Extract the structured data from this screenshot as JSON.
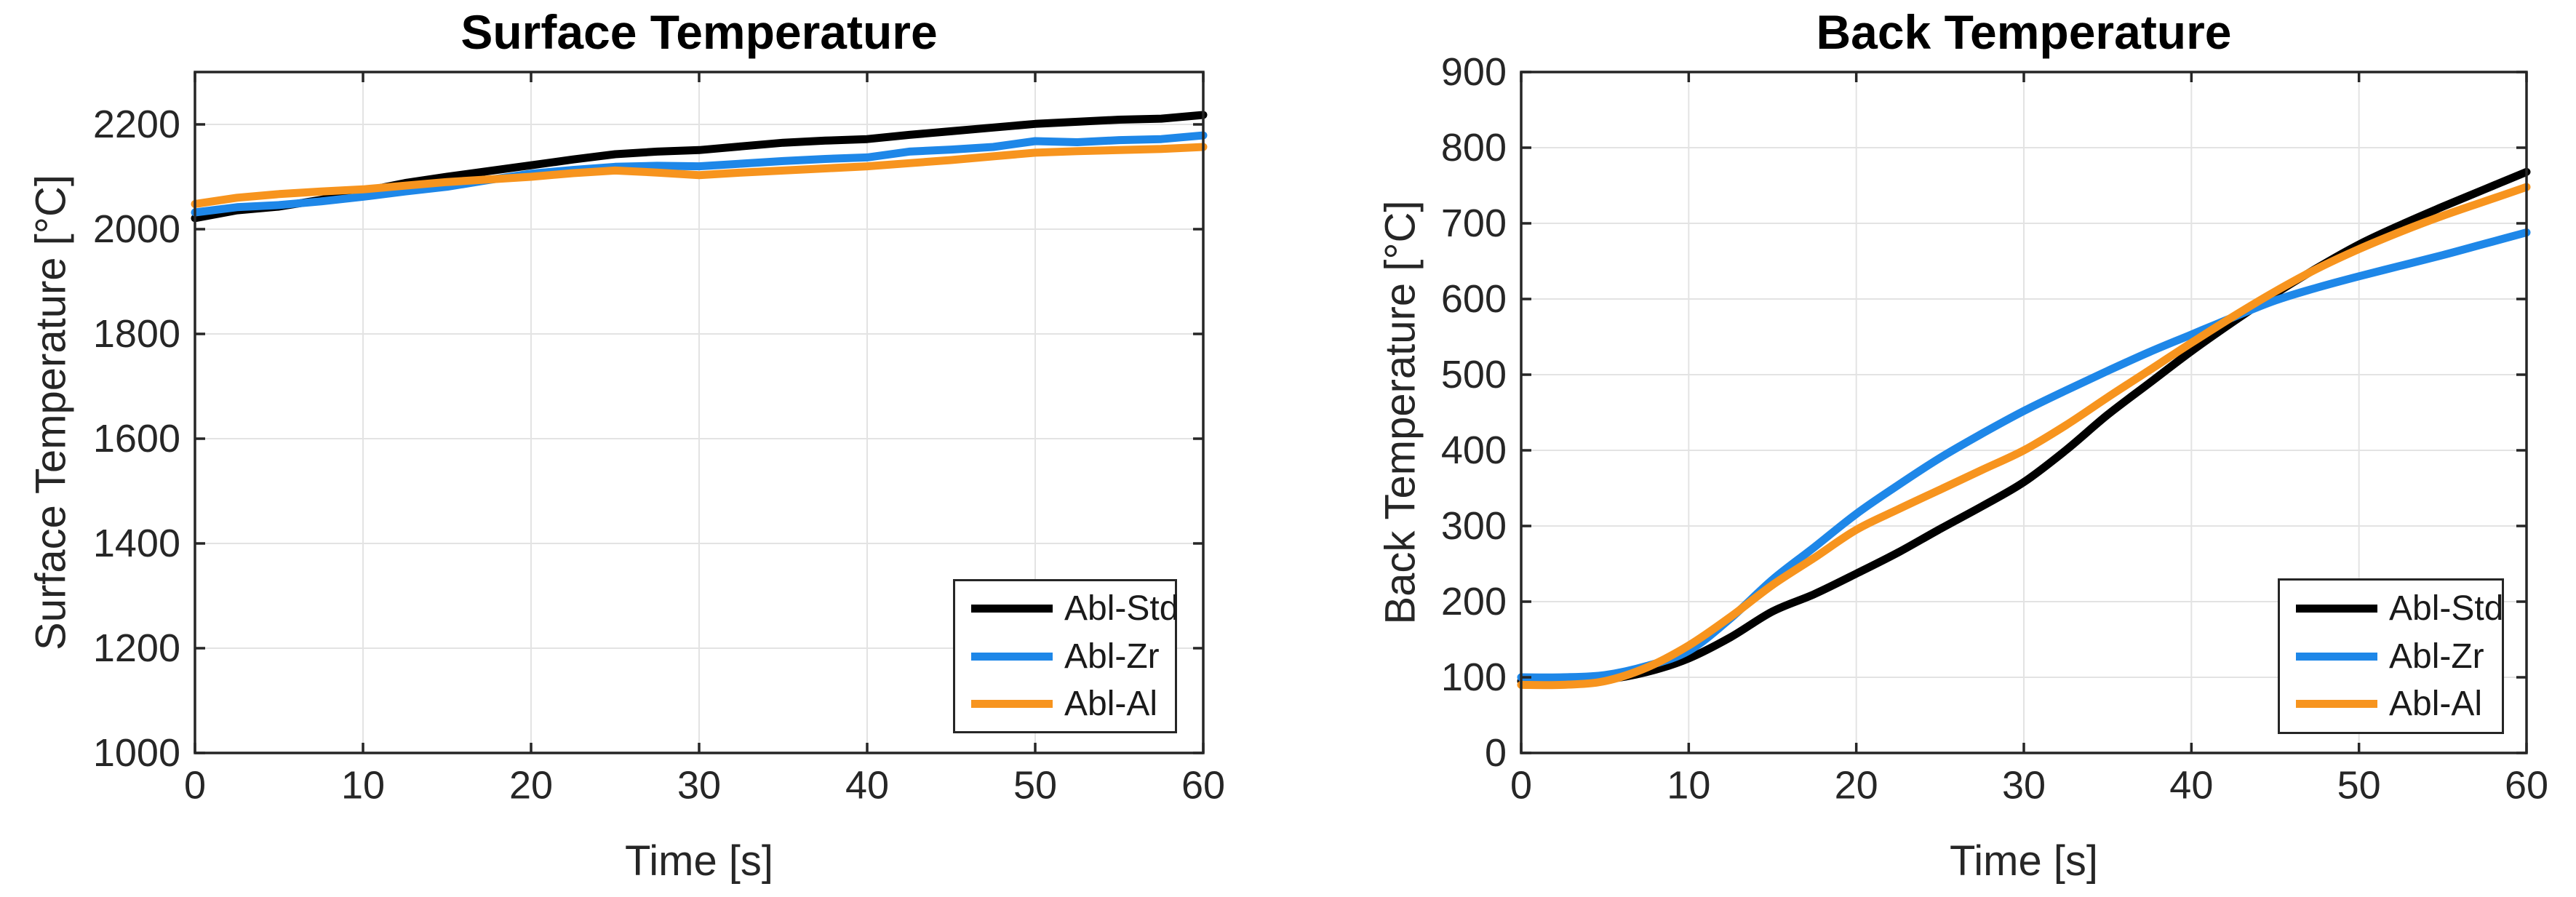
{
  "figure": {
    "background": "#FFFFFF",
    "axis_color": "#262626",
    "grid_color": "#E3E3E3",
    "text_color": "#262626"
  },
  "chart_data": [
    {
      "type": "line",
      "title": "Surface Temperature",
      "xlabel": "Time [s]",
      "ylabel": "Surface Temperature [°C]",
      "xlim": [
        0,
        60
      ],
      "ylim": [
        1000,
        2300
      ],
      "xticks": [
        0,
        10,
        20,
        30,
        40,
        50,
        60
      ],
      "yticks": [
        1000,
        1200,
        1400,
        1600,
        1800,
        2000,
        2200
      ],
      "grid": true,
      "legend_position": "bottom-right",
      "smooth": false,
      "x": [
        0,
        2.5,
        5,
        7.5,
        10,
        12.5,
        15,
        17.5,
        20,
        22.5,
        25,
        27.5,
        30,
        32.5,
        35,
        37.5,
        40,
        42.5,
        45,
        47.5,
        50,
        52.5,
        55,
        57.5,
        60
      ],
      "series": [
        {
          "name": "Abl-Std",
          "color": "#000000",
          "values": [
            2021,
            2036,
            2043,
            2056,
            2072,
            2088,
            2100,
            2111,
            2122,
            2133,
            2143,
            2148,
            2151,
            2158,
            2165,
            2169,
            2172,
            2180,
            2187,
            2194,
            2201,
            2205,
            2209,
            2211,
            2218
          ]
        },
        {
          "name": "Abl-Zr",
          "color": "#1E87E8",
          "values": [
            2032,
            2042,
            2046,
            2053,
            2062,
            2072,
            2081,
            2094,
            2106,
            2113,
            2119,
            2121,
            2120,
            2125,
            2130,
            2134,
            2137,
            2148,
            2152,
            2157,
            2168,
            2166,
            2170,
            2172,
            2179
          ]
        },
        {
          "name": "Abl-Al",
          "color": "#F7941E",
          "values": [
            2048,
            2060,
            2067,
            2072,
            2076,
            2083,
            2090,
            2095,
            2100,
            2107,
            2112,
            2108,
            2103,
            2108,
            2112,
            2116,
            2120,
            2126,
            2132,
            2139,
            2146,
            2149,
            2151,
            2153,
            2157
          ]
        }
      ]
    },
    {
      "type": "line",
      "title": "Back Temperature",
      "xlabel": "Time [s]",
      "ylabel": "Back Temperature [°C]",
      "xlim": [
        0,
        60
      ],
      "ylim": [
        0,
        900
      ],
      "xticks": [
        0,
        10,
        20,
        30,
        40,
        50,
        60
      ],
      "yticks": [
        0,
        100,
        200,
        300,
        400,
        500,
        600,
        700,
        800,
        900
      ],
      "grid": true,
      "legend_position": "bottom-right",
      "smooth": true,
      "x": [
        0,
        2.5,
        5,
        7.5,
        10,
        12.5,
        15,
        17.5,
        20,
        22.5,
        25,
        27.5,
        30,
        32.5,
        35,
        37.5,
        40,
        42.5,
        45,
        47.5,
        50,
        52.5,
        55,
        57.5,
        60
      ],
      "series": [
        {
          "name": "Abl-Std",
          "color": "#000000",
          "values": [
            95,
            95,
            97,
            107,
            125,
            153,
            187,
            210,
            237,
            265,
            296,
            326,
            358,
            400,
            447,
            489,
            531,
            570,
            607,
            641,
            672,
            698,
            722,
            745,
            768
          ]
        },
        {
          "name": "Abl-Zr",
          "color": "#1E87E8",
          "values": [
            100,
            100,
            103,
            115,
            135,
            178,
            229,
            272,
            316,
            354,
            390,
            422,
            452,
            479,
            505,
            530,
            553,
            576,
            598,
            615,
            630,
            644,
            658,
            673,
            688
          ]
        },
        {
          "name": "Abl-Al",
          "color": "#F7941E",
          "values": [
            90,
            90,
            95,
            113,
            142,
            180,
            222,
            258,
            295,
            322,
            348,
            374,
            400,
            433,
            470,
            506,
            542,
            577,
            610,
            640,
            666,
            689,
            710,
            729,
            748
          ]
        }
      ]
    }
  ]
}
